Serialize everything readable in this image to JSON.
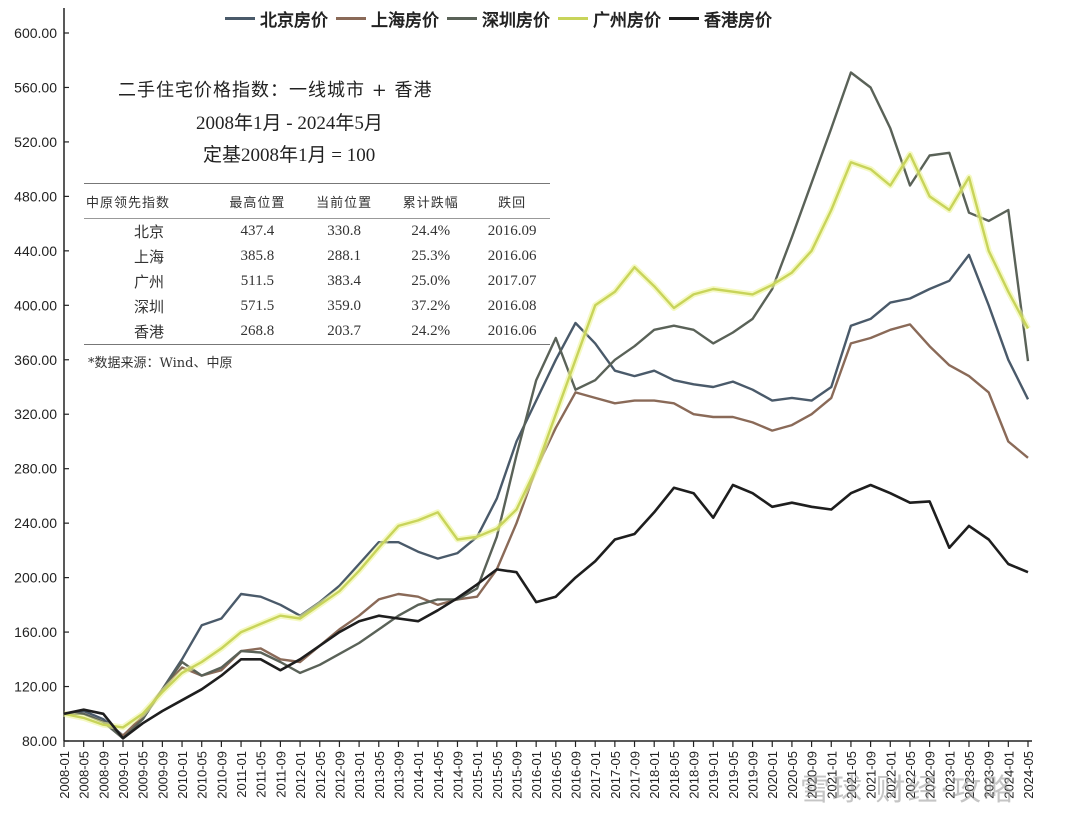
{
  "legend": [
    {
      "label": "北京房价",
      "color": "#4a5a6a"
    },
    {
      "label": "上海房价",
      "color": "#8a6a58"
    },
    {
      "label": "深圳房价",
      "color": "#5a6258"
    },
    {
      "label": "广州房价",
      "color": "#c8d45a"
    },
    {
      "label": "香港房价",
      "color": "#1e1e1e"
    }
  ],
  "info_box": {
    "title": "二手住宅价格指数：一线城市 + 香港",
    "period": "2008年1月 - 2024年5月",
    "base": "定基2008年1月 = 100",
    "table_headers": [
      "中原领先指数",
      "最高位置",
      "当前位置",
      "累计跌幅",
      "跌回"
    ],
    "table_rows": [
      [
        "北京",
        "437.4",
        "330.8",
        "24.4%",
        "2016.09"
      ],
      [
        "上海",
        "385.8",
        "288.1",
        "25.3%",
        "2016.06"
      ],
      [
        "广州",
        "511.5",
        "383.4",
        "25.0%",
        "2017.07"
      ],
      [
        "深圳",
        "571.5",
        "359.0",
        "37.2%",
        "2016.08"
      ],
      [
        "香港",
        "268.8",
        "203.7",
        "24.2%",
        "2016.06"
      ]
    ],
    "source": "*数据来源：Wind、中原"
  },
  "watermark": "雪球 财经·攻略",
  "chart_data": {
    "type": "line",
    "title": "二手住宅价格指数：一线城市 + 香港 (2008年1月 - 2024年5月, 定基2008年1月 = 100)",
    "xlabel": "",
    "ylabel": "",
    "ylim": [
      80,
      600
    ],
    "yticks": [
      "80.00",
      "120.00",
      "160.00",
      "200.00",
      "240.00",
      "280.00",
      "320.00",
      "360.00",
      "400.00",
      "440.00",
      "480.00",
      "520.00",
      "560.00",
      "600.00"
    ],
    "grid": false,
    "legend_position": "top",
    "x": [
      "2008-01",
      "2008-05",
      "2008-09",
      "2009-01",
      "2009-05",
      "2009-09",
      "2010-01",
      "2010-05",
      "2010-09",
      "2011-01",
      "2011-05",
      "2011-09",
      "2012-01",
      "2012-05",
      "2012-09",
      "2013-01",
      "2013-05",
      "2013-09",
      "2014-01",
      "2014-05",
      "2014-09",
      "2015-01",
      "2015-05",
      "2015-09",
      "2016-01",
      "2016-05",
      "2016-09",
      "2017-01",
      "2017-05",
      "2017-09",
      "2018-01",
      "2018-05",
      "2018-09",
      "2019-01",
      "2019-05",
      "2019-09",
      "2020-01",
      "2020-05",
      "2020-09",
      "2021-01",
      "2021-05",
      "2021-09",
      "2022-01",
      "2022-05",
      "2022-09",
      "2023-01",
      "2023-05",
      "2023-09",
      "2024-01",
      "2024-05"
    ],
    "series": [
      {
        "name": "北京房价",
        "values": [
          100,
          102,
          96,
          84,
          96,
          118,
          140,
          165,
          170,
          188,
          186,
          180,
          172,
          182,
          194,
          210,
          226,
          226,
          219,
          214,
          218,
          230,
          258,
          300,
          330,
          360,
          387,
          372,
          352,
          348,
          352,
          345,
          342,
          340,
          344,
          338,
          330,
          332,
          330,
          340,
          385,
          390,
          402,
          405,
          412,
          418,
          437,
          400,
          360,
          331
        ]
      },
      {
        "name": "上海房价",
        "values": [
          100,
          100,
          94,
          84,
          98,
          118,
          134,
          128,
          132,
          146,
          148,
          140,
          138,
          150,
          162,
          172,
          184,
          188,
          186,
          180,
          184,
          186,
          206,
          240,
          280,
          310,
          336,
          332,
          328,
          330,
          330,
          328,
          320,
          318,
          318,
          314,
          308,
          312,
          320,
          332,
          372,
          376,
          382,
          386,
          370,
          356,
          348,
          336,
          300,
          288
        ]
      },
      {
        "name": "深圳房价",
        "values": [
          100,
          100,
          94,
          82,
          96,
          118,
          138,
          128,
          134,
          146,
          145,
          138,
          130,
          136,
          144,
          152,
          162,
          172,
          180,
          184,
          184,
          192,
          230,
          290,
          345,
          376,
          338,
          345,
          360,
          370,
          382,
          385,
          382,
          372,
          380,
          390,
          412,
          450,
          490,
          530,
          571,
          560,
          530,
          488,
          510,
          512,
          468,
          462,
          470,
          359
        ]
      },
      {
        "name": "广州房价",
        "values": [
          100,
          97,
          92,
          90,
          100,
          116,
          130,
          138,
          148,
          160,
          166,
          172,
          170,
          180,
          190,
          205,
          222,
          238,
          242,
          248,
          228,
          230,
          236,
          250,
          280,
          320,
          360,
          400,
          410,
          428,
          414,
          398,
          408,
          412,
          410,
          408,
          415,
          424,
          440,
          470,
          505,
          500,
          488,
          511,
          480,
          470,
          494,
          440,
          410,
          383
        ]
      },
      {
        "name": "香港房价",
        "values": [
          100,
          103,
          100,
          82,
          93,
          102,
          110,
          118,
          128,
          140,
          140,
          132,
          140,
          150,
          160,
          168,
          172,
          170,
          168,
          176,
          185,
          195,
          206,
          204,
          182,
          186,
          200,
          212,
          228,
          232,
          248,
          266,
          262,
          244,
          268,
          262,
          252,
          255,
          252,
          250,
          262,
          268,
          262,
          255,
          256,
          222,
          238,
          228,
          210,
          204
        ]
      }
    ]
  }
}
